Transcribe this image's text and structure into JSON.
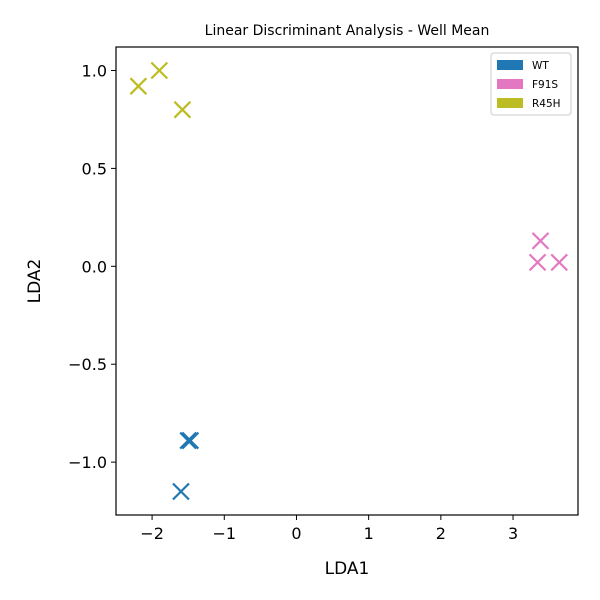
{
  "chart_data": {
    "type": "scatter",
    "title": "Linear Discriminant Analysis - Well Mean",
    "xlabel": "LDA1",
    "ylabel": "LDA2",
    "xlim": [
      -2.5,
      3.9
    ],
    "ylim": [
      -1.27,
      1.12
    ],
    "x_ticks": [
      -2,
      -1,
      0,
      1,
      2,
      3
    ],
    "y_ticks": [
      -1.0,
      -0.5,
      0.0,
      0.5,
      1.0
    ],
    "x_tick_labels": [
      "−2",
      "−1",
      "0",
      "1",
      "2",
      "3"
    ],
    "y_tick_labels": [
      "−1.0",
      "−0.5",
      "0.0",
      "0.5",
      "1.0"
    ],
    "marker": "x",
    "grid": false,
    "legend_position": "top-right",
    "series": [
      {
        "name": "WT",
        "color": "#1f77b4",
        "points": [
          {
            "x": -1.5,
            "y": -0.89
          },
          {
            "x": -1.47,
            "y": -0.89
          },
          {
            "x": -1.6,
            "y": -1.15
          }
        ]
      },
      {
        "name": "F91S",
        "color": "#e377c2",
        "points": [
          {
            "x": 3.38,
            "y": 0.13
          },
          {
            "x": 3.34,
            "y": 0.02
          },
          {
            "x": 3.64,
            "y": 0.02
          }
        ]
      },
      {
        "name": "R45H",
        "color": "#bcbd22",
        "points": [
          {
            "x": -2.19,
            "y": 0.92
          },
          {
            "x": -1.9,
            "y": 1.0
          },
          {
            "x": -1.58,
            "y": 0.8
          }
        ]
      }
    ]
  }
}
